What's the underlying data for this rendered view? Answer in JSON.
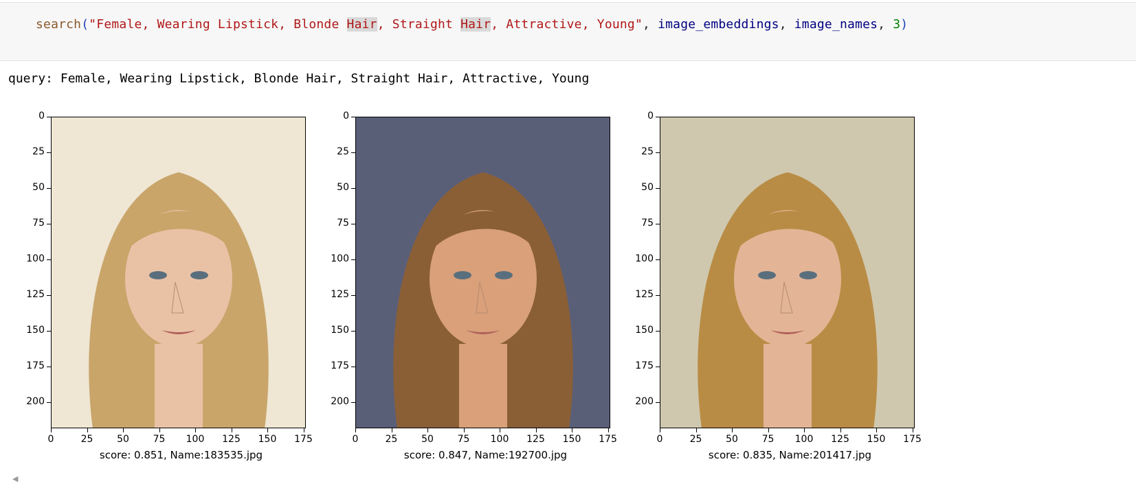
{
  "code": {
    "fn": "search",
    "open": "(",
    "str_a": "\"Female, Wearing Lipstick, Blonde ",
    "hl1": "Hair",
    "str_b": ", Straight ",
    "hl2": "Hair",
    "str_c": ", Attractive, Young\"",
    "sep1": ", ",
    "arg1": "image_embeddings",
    "sep2": ", ",
    "arg2": "image_names",
    "sep3": ", ",
    "arg3": "3",
    "close": ")"
  },
  "output": {
    "query_line": "query: Female, Wearing Lipstick, Blonde Hair, Straight Hair, Attractive, Young"
  },
  "plots": [
    {
      "caption": "score: 0.851, Name:183535.jpg",
      "bg": "#efe6d4",
      "hair": "#c9a56a",
      "skin": "#e9c2a6"
    },
    {
      "caption": "score: 0.847, Name:192700.jpg",
      "bg": "#5a5f78",
      "hair": "#8a5f36",
      "skin": "#d9a07a"
    },
    {
      "caption": "score: 0.835, Name:201417.jpg",
      "bg": "#cfc8ae",
      "hair": "#b98c45",
      "skin": "#e3b596"
    }
  ],
  "axes": {
    "yticks": [
      "0",
      "25",
      "50",
      "75",
      "100",
      "125",
      "150",
      "175",
      "200"
    ],
    "xticks": [
      "0",
      "25",
      "50",
      "75",
      "100",
      "125",
      "150",
      "175"
    ]
  },
  "scroll_icon": "scroll-left-arrow-icon"
}
